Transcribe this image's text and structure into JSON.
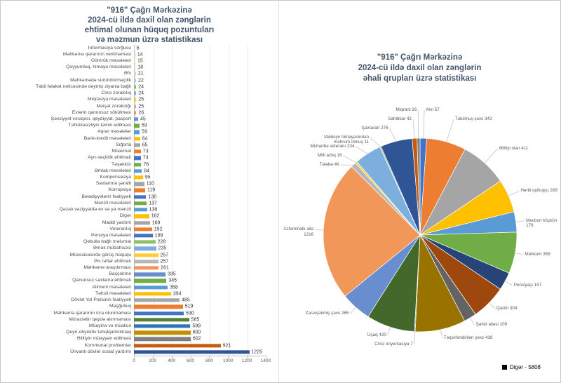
{
  "left_chart": {
    "title_lines": [
      "\"916\" Çağrı Mərkəzinə",
      "2024-cü ildə daxil olan zənglərin",
      "ehtimal olunan hüquq pozuntuları",
      "və məzmun üzrə statistikası"
    ]
  },
  "right_chart": {
    "title_lines": [
      "\"916\" Çağrı Mərkəzinə",
      "2024-cü ildə daxil olan zənglərin",
      "əhali qrupları üzrə statistikası"
    ],
    "legend_label": "Digər - 5808",
    "legend_color": "#000000"
  },
  "chart_data": [
    {
      "type": "bar",
      "orientation": "horizontal",
      "title": "\"916\" Çağrı Mərkəzinə 2024-cü ildə daxil olan zənglərin ehtimal olunan hüquq pozuntuları və məzmun üzrə statistikası",
      "xlabel": "",
      "ylabel": "",
      "xlim": [
        0,
        1400
      ],
      "x_ticks": [
        0,
        200,
        400,
        600,
        800,
        1000,
        1200,
        1400
      ],
      "grid": true,
      "categories": [
        "İnformasiya sorğusu",
        "Məhkəmə qərarının verilməməsi",
        "Gömrük məsələləri",
        "Qəyyumluq, himayə məsələləri",
        "Əfv",
        "Məhkəmədə süründürməçilik",
        "Təbii fəlakət nəticəsində dəymiş ziyanla bağlı",
        "Cinsi zorakılıq",
        "Miqrasiya məsələləri",
        "Məişət zorakılığı",
        "Evlərin qanunsuz sökülməsi",
        "Şəxsiyyət vəsiqəsi, qeydiyyat, pasport",
        "Təhlükəsizliyin təmin edilməsi",
        "Aqrar məsələlər",
        "Bank-kredit məsələləri",
        "Sığorta",
        "Müavinət",
        "Ayrı-seçkilik ehtimalı",
        "Təşəkkür",
        "Əmlak məsələləri",
        "Kompensasiya",
        "Saxlanma şəraiti",
        "Korrupsiya",
        "Bələdiyyələrin fəaliyyəti",
        "Mənzil məsələləri",
        "Qəzalı vəziyyətdə ev və ya mənzil",
        "Digər",
        "Maddi yardım",
        "Veteranlıq",
        "Pensiya məsələləri",
        "Qəbulla bağlı məlumat",
        "Əmək mübahisəsi",
        "Müəssisələrdə görüş hüququ",
        "Pis rəftar ehtimalı",
        "Məhkəmə araşdırması",
        "Başçəkmə",
        "Qanunsuz saxlama ehtimalı",
        "Aliment məsələləri",
        "Təhsil məsələləri",
        "Dövlət Yol Polisinin fəaliyyəti",
        "Məşğulluq",
        "Məhkəmə qərarının icra olunmaması",
        "Müraciətin qeydə alınmaması",
        "Müayinə və müalicə",
        "Qeyri-obyektiv təhqiqat/istintaq",
        "Əlilliyin müəyyən edilməsi",
        "Kommunal problemlər",
        "Ünvanlı dövlət sosial yardımı"
      ],
      "values": [
        6,
        14,
        15,
        18,
        21,
        22,
        24,
        24,
        25,
        25,
        26,
        45,
        59,
        59,
        64,
        65,
        73,
        74,
        78,
        84,
        95,
        110,
        119,
        130,
        137,
        138,
        162,
        169,
        192,
        199,
        228,
        235,
        257,
        257,
        261,
        335,
        345,
        358,
        394,
        485,
        519,
        530,
        585,
        599,
        600,
        602,
        921,
        1225
      ],
      "bar_colors": [
        "#C6E0B4",
        "#BDD7EE",
        "#FFE699",
        "#D9D9D9",
        "#F8CBAD",
        "#B4C7E7",
        "#8CC168",
        "#7CAFDD",
        "#FFCD33",
        "#B7B7B7",
        "#F1975A",
        "#698ED0",
        "#70AD47",
        "#5B9BD5",
        "#FFC000",
        "#A5A5A5",
        "#ED7D31",
        "#4472C4",
        "#70AD47",
        "#5B9BD5",
        "#FFC000",
        "#A5A5A5",
        "#ED7D31",
        "#4472C4",
        "#70AD47",
        "#5B9BD5",
        "#FFC000",
        "#A5A5A5",
        "#ED7D31",
        "#4472C4",
        "#8CC168",
        "#7CAFDD",
        "#FFCD33",
        "#B7B7B7",
        "#F1975A",
        "#698ED0",
        "#70AD47",
        "#5B9BD5",
        "#FFC000",
        "#A5A5A5",
        "#ED7D31",
        "#4472C4",
        "#538135",
        "#2E75B6",
        "#BF9000",
        "#7F7F7F",
        "#C55A11",
        "#305496"
      ]
    },
    {
      "type": "pie",
      "title": "\"916\" Çağrı Mərkəzinə 2024-cü ildə daxil olan zənglərin əhali qrupları üzrə statistikası",
      "start_angle_deg": 0,
      "direction": "clockwise",
      "total": 5202,
      "slices": [
        {
          "label": "Ahıl",
          "value": 57,
          "color": "#4472C4"
        },
        {
          "label": "Tutulmuş şəxs",
          "value": 343,
          "color": "#ED7D31"
        },
        {
          "label": "Əlilliyi olan",
          "value": 411,
          "color": "#A5A5A5"
        },
        {
          "label": "Hərbi qulluqçu",
          "value": 289,
          "color": "#FFC000"
        },
        {
          "label": "Məcburi köçkün",
          "value": 176,
          "color": "#5B9BD5"
        },
        {
          "label": "Məhkum",
          "value": 359,
          "color": "#70AD47"
        },
        {
          "label": "Pensiyaçı",
          "value": 157,
          "color": "#264478"
        },
        {
          "label": "Qadın",
          "value": 304,
          "color": "#9E480E"
        },
        {
          "label": "Şəhid ailəsi",
          "value": 109,
          "color": "#636363"
        },
        {
          "label": "Təqsirləndirilən şəxs",
          "value": 438,
          "color": "#997300"
        },
        {
          "label": "Cinsi oriyentasiya",
          "value": 7,
          "color": "#255E91"
        },
        {
          "label": "Uşaq",
          "value": 420,
          "color": "#43682B"
        },
        {
          "label": "Zərərçəkmiş şəxs",
          "value": 265,
          "color": "#698ED0"
        },
        {
          "label": "Aztəminatlı ailə",
          "value": 1216,
          "color": "#F1975A"
        },
        {
          "label": "Tələbə",
          "value": 46,
          "color": "#B7B7B7"
        },
        {
          "label": "Milli azlıq",
          "value": 16,
          "color": "#FFCD33"
        },
        {
          "label": "Müharibə veteranı",
          "value": 234,
          "color": "#7CAFDD"
        },
        {
          "label": "Valideyn himayəsindən məhrum olmuş",
          "value": 11,
          "color": "#8CC168"
        },
        {
          "label": "İşaxtaran",
          "value": 276,
          "color": "#2F5597"
        },
        {
          "label": "Sahibkar",
          "value": 42,
          "color": "#C55A11"
        },
        {
          "label": "Miqrant",
          "value": 26,
          "color": "#7F7F7F"
        }
      ],
      "legend": [
        {
          "label": "Digər - 5808",
          "color": "#000000"
        }
      ],
      "legend_position": "bottom-right"
    }
  ]
}
